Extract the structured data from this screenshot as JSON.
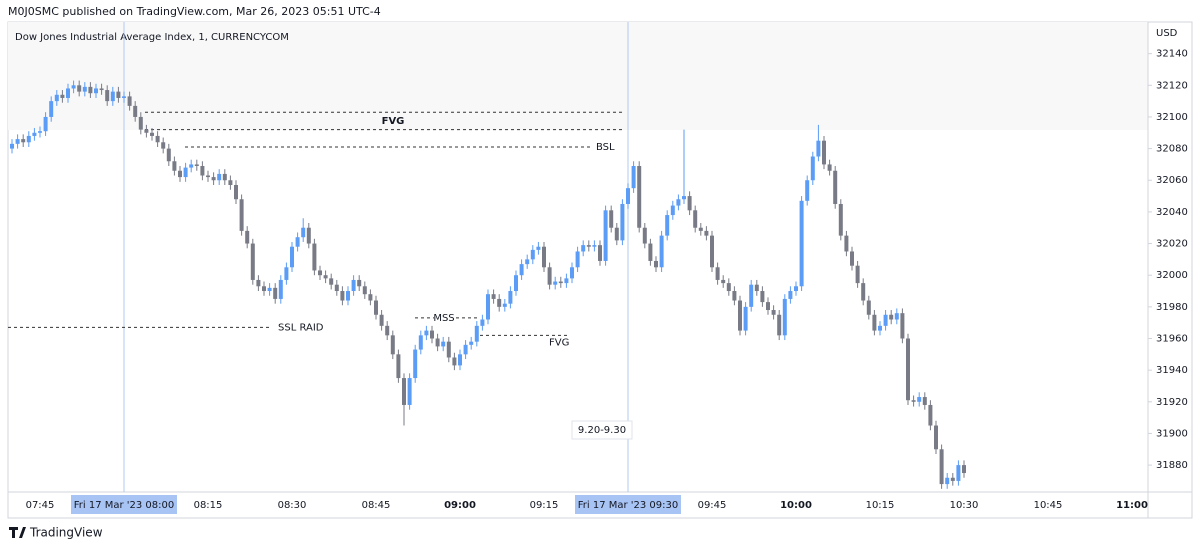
{
  "header": "M0J0SMC published on TradingView.com, Mar 26, 2023 05:51 UTC-4",
  "footer": "TradingView",
  "chart_data": {
    "type": "candlestick",
    "title": "Dow Jones Industrial Average Index, 1, CURRENCYCOM",
    "currency": "USD",
    "up_color": "#5b9cf6",
    "down_color": "#787b86",
    "ylim": [
      31863,
      32160
    ],
    "yticks": [
      32140,
      32120,
      32100,
      32080,
      32060,
      32040,
      32020,
      32000,
      31980,
      31960,
      31940,
      31920,
      31900,
      31880
    ],
    "xticks": [
      "07:45",
      "08:15",
      "08:30",
      "08:45",
      "09:00",
      "09:15",
      "09:45",
      "10:00",
      "10:15",
      "10:30",
      "10:45",
      "11:00"
    ],
    "crosshairs": [
      "Fri 17 Mar '23 08:00",
      "Fri 17 Mar '23 09:30"
    ],
    "session_label": "9.20-9.30",
    "drawings": [
      {
        "label": "FVG",
        "prices": [
          32103,
          32092
        ]
      },
      {
        "label": "BSL",
        "price": 32081
      },
      {
        "label": "SSL RAID",
        "price": 31967
      },
      {
        "label": "MSS",
        "price": 31973
      },
      {
        "label": "FVG",
        "price": 31962
      }
    ],
    "ohlc": [
      [
        32080,
        32086,
        32077,
        32083
      ],
      [
        32083,
        32089,
        32080,
        32086
      ],
      [
        32086,
        32089,
        32081,
        32084
      ],
      [
        32084,
        32091,
        32081,
        32088
      ],
      [
        32088,
        32093,
        32085,
        32090
      ],
      [
        32090,
        32094,
        32087,
        32091
      ],
      [
        32091,
        32103,
        32088,
        32100
      ],
      [
        32100,
        32113,
        32097,
        32110
      ],
      [
        32110,
        32117,
        32107,
        32114
      ],
      [
        32114,
        32117,
        32109,
        32112
      ],
      [
        32112,
        32121,
        32109,
        32118
      ],
      [
        32118,
        32123,
        32115,
        32120
      ],
      [
        32120,
        32123,
        32113,
        32116
      ],
      [
        32116,
        32122,
        32113,
        32119
      ],
      [
        32119,
        32122,
        32112,
        32115
      ],
      [
        32115,
        32121,
        32112,
        32118
      ],
      [
        32118,
        32121,
        32114,
        32117
      ],
      [
        32117,
        32120,
        32107,
        32110
      ],
      [
        32110,
        32119,
        32107,
        32116
      ],
      [
        32116,
        32119,
        32109,
        32112
      ],
      [
        32112,
        32116,
        32109,
        32113
      ],
      [
        32113,
        32116,
        32104,
        32107
      ],
      [
        32107,
        32110,
        32097,
        32100
      ],
      [
        32100,
        32103,
        32089,
        32092
      ],
      [
        32092,
        32095,
        32087,
        32090
      ],
      [
        32090,
        32093,
        32085,
        32088
      ],
      [
        32088,
        32091,
        32081,
        32084
      ],
      [
        32084,
        32087,
        32077,
        32080
      ],
      [
        32080,
        32083,
        32069,
        32072
      ],
      [
        32072,
        32075,
        32063,
        32066
      ],
      [
        32066,
        32069,
        32059,
        32062
      ],
      [
        32062,
        32071,
        32059,
        32068
      ],
      [
        32068,
        32073,
        32065,
        32070
      ],
      [
        32070,
        32073,
        32066,
        32069
      ],
      [
        32069,
        32072,
        32060,
        32063
      ],
      [
        32063,
        32066,
        32059,
        32062
      ],
      [
        32062,
        32065,
        32057,
        32060
      ],
      [
        32060,
        32067,
        32057,
        32064
      ],
      [
        32064,
        32067,
        32057,
        32060
      ],
      [
        32060,
        32063,
        32054,
        32057
      ],
      [
        32057,
        32060,
        32045,
        32048
      ],
      [
        32048,
        32051,
        32025,
        32028
      ],
      [
        32028,
        32031,
        32017,
        32020
      ],
      [
        32020,
        32023,
        31994,
        31997
      ],
      [
        31997,
        32000,
        31990,
        31993
      ],
      [
        31993,
        31996,
        31987,
        31990
      ],
      [
        31990,
        31995,
        31987,
        31992
      ],
      [
        31992,
        31995,
        31982,
        31985
      ],
      [
        31985,
        32000,
        31982,
        31997
      ],
      [
        31997,
        32008,
        31994,
        32005
      ],
      [
        32005,
        32021,
        32002,
        32018
      ],
      [
        32018,
        32027,
        32015,
        32024
      ],
      [
        32024,
        32036,
        32021,
        32030
      ],
      [
        32030,
        32033,
        32017,
        32020
      ],
      [
        32020,
        32023,
        32000,
        32003
      ],
      [
        32003,
        32006,
        31997,
        32000
      ],
      [
        32000,
        32003,
        31995,
        31998
      ],
      [
        31998,
        32001,
        31991,
        31994
      ],
      [
        31994,
        31997,
        31987,
        31990
      ],
      [
        31990,
        31993,
        31981,
        31984
      ],
      [
        31984,
        31993,
        31981,
        31990
      ],
      [
        31990,
        32000,
        31987,
        31997
      ],
      [
        31997,
        32000,
        31990,
        31993
      ],
      [
        31993,
        31996,
        31985,
        31988
      ],
      [
        31988,
        31991,
        31981,
        31984
      ],
      [
        31984,
        31987,
        31972,
        31975
      ],
      [
        31975,
        31978,
        31965,
        31968
      ],
      [
        31968,
        31971,
        31959,
        31962
      ],
      [
        31962,
        31965,
        31947,
        31950
      ],
      [
        31950,
        31953,
        31932,
        31935
      ],
      [
        31935,
        31938,
        31905,
        31918
      ],
      [
        31918,
        31938,
        31915,
        31935
      ],
      [
        31935,
        31956,
        31932,
        31953
      ],
      [
        31953,
        31965,
        31950,
        31962
      ],
      [
        31962,
        31968,
        31959,
        31965
      ],
      [
        31965,
        31968,
        31957,
        31960
      ],
      [
        31960,
        31963,
        31952,
        31955
      ],
      [
        31955,
        31961,
        31952,
        31958
      ],
      [
        31958,
        31961,
        31945,
        31948
      ],
      [
        31948,
        31951,
        31940,
        31943
      ],
      [
        31943,
        31953,
        31940,
        31950
      ],
      [
        31950,
        31959,
        31947,
        31956
      ],
      [
        31956,
        31961,
        31953,
        31958
      ],
      [
        31958,
        31971,
        31955,
        31968
      ],
      [
        31968,
        31975,
        31965,
        31972
      ],
      [
        31972,
        31991,
        31969,
        31988
      ],
      [
        31988,
        31991,
        31982,
        31985
      ],
      [
        31985,
        31988,
        31977,
        31980
      ],
      [
        31980,
        31985,
        31977,
        31982
      ],
      [
        31982,
        31993,
        31979,
        31990
      ],
      [
        31990,
        32003,
        31987,
        32000
      ],
      [
        32000,
        32010,
        31997,
        32007
      ],
      [
        32007,
        32013,
        32004,
        32010
      ],
      [
        32010,
        32019,
        32007,
        32016
      ],
      [
        32016,
        32021,
        32013,
        32018
      ],
      [
        32018,
        32021,
        32002,
        32005
      ],
      [
        32005,
        32008,
        31991,
        31994
      ],
      [
        31994,
        31999,
        31991,
        31996
      ],
      [
        31996,
        31999,
        31992,
        31995
      ],
      [
        31995,
        32001,
        31992,
        31998
      ],
      [
        31998,
        32008,
        31995,
        32005
      ],
      [
        32005,
        32018,
        32002,
        32015
      ],
      [
        32015,
        32022,
        32012,
        32019
      ],
      [
        32019,
        32022,
        32015,
        32018
      ],
      [
        32018,
        32022,
        32015,
        32019
      ],
      [
        32019,
        32022,
        32006,
        32009
      ],
      [
        32009,
        32044,
        32006,
        32041
      ],
      [
        32041,
        32044,
        32027,
        32030
      ],
      [
        32030,
        32033,
        32019,
        32022
      ],
      [
        32022,
        32048,
        32019,
        32045
      ],
      [
        32045,
        32058,
        32042,
        32055
      ],
      [
        32055,
        32072,
        32052,
        32069
      ],
      [
        32069,
        32072,
        32027,
        32030
      ],
      [
        32030,
        32033,
        32017,
        32020
      ],
      [
        32020,
        32023,
        32006,
        32009
      ],
      [
        32009,
        32012,
        32002,
        32005
      ],
      [
        32005,
        32028,
        32002,
        32025
      ],
      [
        32025,
        32041,
        32022,
        32038
      ],
      [
        32038,
        32047,
        32035,
        32044
      ],
      [
        32044,
        32051,
        32041,
        32048
      ],
      [
        32048,
        32092,
        32045,
        32050
      ],
      [
        32050,
        32053,
        32038,
        32041
      ],
      [
        32041,
        32044,
        32027,
        32030
      ],
      [
        32030,
        32033,
        32025,
        32028
      ],
      [
        32028,
        32031,
        32022,
        32025
      ],
      [
        32025,
        32028,
        32002,
        32005
      ],
      [
        32005,
        32008,
        31994,
        31997
      ],
      [
        31997,
        32000,
        31992,
        31995
      ],
      [
        31995,
        31998,
        31987,
        31990
      ],
      [
        31990,
        31993,
        31981,
        31984
      ],
      [
        31984,
        31987,
        31962,
        31965
      ],
      [
        31965,
        31983,
        31962,
        31980
      ],
      [
        31980,
        31997,
        31977,
        31994
      ],
      [
        31994,
        31997,
        31987,
        31990
      ],
      [
        31990,
        31993,
        31980,
        31983
      ],
      [
        31983,
        31986,
        31975,
        31978
      ],
      [
        31978,
        31981,
        31972,
        31975
      ],
      [
        31975,
        31978,
        31959,
        31962
      ],
      [
        31962,
        31988,
        31959,
        31985
      ],
      [
        31985,
        31993,
        31982,
        31990
      ],
      [
        31990,
        31996,
        31987,
        31993
      ],
      [
        31993,
        32050,
        31990,
        32047
      ],
      [
        32047,
        32063,
        32044,
        32060
      ],
      [
        32060,
        32078,
        32057,
        32075
      ],
      [
        32075,
        32095,
        32072,
        32085
      ],
      [
        32085,
        32088,
        32067,
        32070
      ],
      [
        32070,
        32073,
        32063,
        32066
      ],
      [
        32066,
        32069,
        32042,
        32045
      ],
      [
        32045,
        32048,
        32022,
        32025
      ],
      [
        32025,
        32028,
        32012,
        32015
      ],
      [
        32015,
        32018,
        32003,
        32006
      ],
      [
        32006,
        32009,
        31992,
        31995
      ],
      [
        31995,
        31998,
        31981,
        31984
      ],
      [
        31984,
        31987,
        31972,
        31975
      ],
      [
        31975,
        31978,
        31962,
        31965
      ],
      [
        31965,
        31971,
        31962,
        31968
      ],
      [
        31968,
        31978,
        31965,
        31975
      ],
      [
        31975,
        31978,
        31969,
        31972
      ],
      [
        31972,
        31979,
        31969,
        31976
      ],
      [
        31976,
        31979,
        31957,
        31960
      ],
      [
        31960,
        31963,
        31918,
        31921
      ],
      [
        31921,
        31924,
        31917,
        31920
      ],
      [
        31920,
        31926,
        31917,
        31923
      ],
      [
        31923,
        31926,
        31915,
        31918
      ],
      [
        31918,
        31921,
        31902,
        31905
      ],
      [
        31905,
        31908,
        31887,
        31890
      ],
      [
        31890,
        31893,
        31865,
        31868
      ],
      [
        31868,
        31875,
        31865,
        31872
      ],
      [
        31872,
        31875,
        31867,
        31870
      ],
      [
        31870,
        31883,
        31867,
        31880
      ],
      [
        31880,
        31883,
        31872,
        31875
      ]
    ]
  }
}
